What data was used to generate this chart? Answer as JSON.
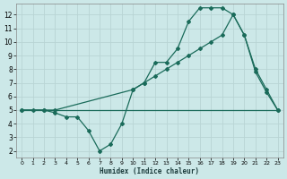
{
  "xlabel": "Humidex (Indice chaleur)",
  "bg_color": "#cce8e8",
  "grid_color": "#b8d4d4",
  "line_color": "#1a6b5a",
  "xlim": [
    -0.5,
    23.5
  ],
  "ylim": [
    1.5,
    12.8
  ],
  "xticks": [
    0,
    1,
    2,
    3,
    4,
    5,
    6,
    7,
    8,
    9,
    10,
    11,
    12,
    13,
    14,
    15,
    16,
    17,
    18,
    19,
    20,
    21,
    22,
    23
  ],
  "yticks": [
    2,
    3,
    4,
    5,
    6,
    7,
    8,
    9,
    10,
    11,
    12
  ],
  "line1_x": [
    0,
    1,
    2,
    3,
    4,
    5,
    6,
    7,
    8,
    9,
    10,
    11,
    12,
    13,
    14,
    15,
    16,
    17,
    18,
    19,
    20,
    21,
    22,
    23
  ],
  "line1_y": [
    5,
    5,
    5,
    5,
    5,
    5,
    5,
    5,
    5,
    5,
    5,
    5,
    5,
    5,
    5,
    5,
    5,
    5,
    5,
    5,
    5,
    5,
    5,
    5
  ],
  "line2_x": [
    0,
    1,
    2,
    3,
    4,
    5,
    6,
    7,
    8,
    9,
    10,
    11,
    12,
    13,
    14,
    15,
    16,
    17,
    18,
    19,
    20,
    21,
    22,
    23
  ],
  "line2_y": [
    5,
    5,
    5,
    4.8,
    4.5,
    4.5,
    3.5,
    2.0,
    2.5,
    4.0,
    6.5,
    7.0,
    8.5,
    8.5,
    9.5,
    11.5,
    12.5,
    12.5,
    12.5,
    12.0,
    10.5,
    7.8,
    6.3,
    5.0
  ],
  "line3_x": [
    0,
    2,
    3,
    10,
    11,
    12,
    13,
    14,
    15,
    16,
    17,
    18,
    19,
    20,
    21,
    22,
    23
  ],
  "line3_y": [
    5,
    5,
    5,
    6.5,
    7.0,
    7.5,
    8.0,
    8.5,
    9.0,
    9.5,
    10.0,
    10.5,
    12.0,
    10.5,
    8.0,
    6.5,
    5.0
  ]
}
